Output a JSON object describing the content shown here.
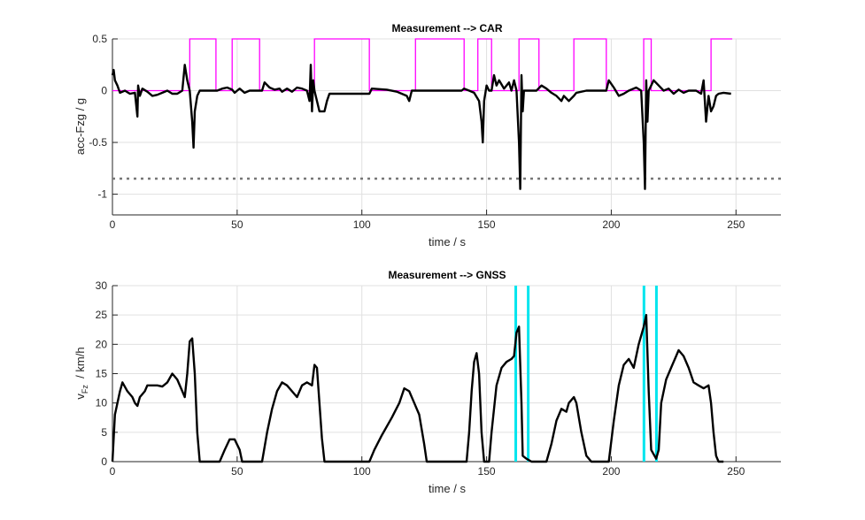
{
  "chart_data": [
    {
      "type": "line",
      "title": "Measurement --> CAR",
      "xlabel": "time / s",
      "ylabel": "acc-Fzg / g",
      "xlim": [
        0,
        268
      ],
      "ylim": [
        -1.2,
        0.5
      ],
      "xticks": [
        0,
        50,
        100,
        150,
        200,
        250
      ],
      "xtick_labels": [
        "0",
        "50",
        "100",
        "150",
        "200",
        "250"
      ],
      "yticks": [
        -1,
        -0.5,
        0,
        0.5
      ],
      "ytick_labels": [
        "-1",
        "-0.5",
        "0",
        "0.5"
      ],
      "grid": true,
      "colors": {
        "trace": "#000000",
        "pulse": "#ff00ff",
        "threshold": "#777777"
      },
      "threshold_y": -0.85,
      "pulse_high": 0.5,
      "pulse_low": 0,
      "pulses": [
        [
          31,
          41.5
        ],
        [
          48,
          59
        ],
        [
          81,
          103
        ],
        [
          121.5,
          141
        ],
        [
          146.5,
          152
        ],
        [
          163,
          171
        ],
        [
          185,
          198
        ],
        [
          213,
          216
        ],
        [
          240,
          248.5
        ]
      ],
      "pulse_end": 248.5,
      "series": [
        {
          "name": "acc",
          "points": [
            [
              0,
              0.15
            ],
            [
              0.5,
              0.2
            ],
            [
              1,
              0.1
            ],
            [
              2,
              0.05
            ],
            [
              3,
              -0.02
            ],
            [
              5,
              0
            ],
            [
              7,
              -0.03
            ],
            [
              9,
              -0.02
            ],
            [
              10,
              -0.25
            ],
            [
              10.3,
              0.05
            ],
            [
              11,
              -0.05
            ],
            [
              12,
              0.02
            ],
            [
              14,
              -0.01
            ],
            [
              16,
              -0.05
            ],
            [
              18,
              -0.04
            ],
            [
              20,
              -0.02
            ],
            [
              22,
              0
            ],
            [
              24,
              -0.03
            ],
            [
              26,
              -0.03
            ],
            [
              28,
              0
            ],
            [
              29,
              0.25
            ],
            [
              30,
              0.1
            ],
            [
              31,
              0
            ],
            [
              32,
              -0.3
            ],
            [
              32.5,
              -0.55
            ],
            [
              33,
              -0.2
            ],
            [
              34,
              -0.05
            ],
            [
              35,
              0
            ],
            [
              42,
              0
            ],
            [
              44,
              0.02
            ],
            [
              46,
              0.03
            ],
            [
              48,
              0.01
            ],
            [
              49,
              -0.02
            ],
            [
              50,
              0
            ],
            [
              51,
              0.02
            ],
            [
              53,
              -0.02
            ],
            [
              55,
              0
            ],
            [
              60,
              0
            ],
            [
              61,
              0.08
            ],
            [
              63,
              0.03
            ],
            [
              65,
              0.01
            ],
            [
              67,
              0.02
            ],
            [
              68,
              -0.01
            ],
            [
              70,
              0.02
            ],
            [
              72,
              -0.01
            ],
            [
              74,
              0.03
            ],
            [
              76,
              0.02
            ],
            [
              78,
              0
            ],
            [
              79,
              -0.1
            ],
            [
              79.5,
              0.25
            ],
            [
              80,
              -0.2
            ],
            [
              80.5,
              0.1
            ],
            [
              81,
              0
            ],
            [
              82,
              -0.1
            ],
            [
              83,
              -0.2
            ],
            [
              85,
              -0.2
            ],
            [
              86,
              -0.1
            ],
            [
              87,
              -0.03
            ],
            [
              103,
              -0.03
            ],
            [
              104,
              0.02
            ],
            [
              110,
              0.01
            ],
            [
              114,
              -0.01
            ],
            [
              116,
              -0.03
            ],
            [
              118,
              -0.05
            ],
            [
              119,
              -0.1
            ],
            [
              120,
              0
            ],
            [
              140,
              0
            ],
            [
              141,
              0.02
            ],
            [
              143,
              0
            ],
            [
              145,
              -0.02
            ],
            [
              147,
              -0.1
            ],
            [
              148,
              -0.3
            ],
            [
              148.5,
              -0.5
            ],
            [
              149,
              -0.1
            ],
            [
              150,
              0.05
            ],
            [
              151,
              0
            ],
            [
              152,
              0
            ],
            [
              153,
              0.15
            ],
            [
              154,
              0.05
            ],
            [
              155,
              0.1
            ],
            [
              157,
              0.02
            ],
            [
              159,
              0.08
            ],
            [
              160,
              0
            ],
            [
              161,
              0.1
            ],
            [
              162,
              0
            ],
            [
              163,
              -0.5
            ],
            [
              163.5,
              -0.95
            ],
            [
              164,
              0.15
            ],
            [
              164.5,
              -0.2
            ],
            [
              165,
              0
            ],
            [
              170,
              0
            ],
            [
              172,
              0.05
            ],
            [
              174,
              0.02
            ],
            [
              176,
              -0.02
            ],
            [
              178,
              -0.05
            ],
            [
              180,
              -0.1
            ],
            [
              181,
              -0.05
            ],
            [
              183,
              -0.1
            ],
            [
              185,
              -0.05
            ],
            [
              186,
              -0.02
            ],
            [
              190,
              0
            ],
            [
              198,
              0
            ],
            [
              199,
              0.1
            ],
            [
              201,
              0.03
            ],
            [
              203,
              -0.05
            ],
            [
              205,
              -0.03
            ],
            [
              207,
              0
            ],
            [
              210,
              0.03
            ],
            [
              212,
              0
            ],
            [
              213,
              -0.5
            ],
            [
              213.5,
              -0.95
            ],
            [
              214,
              0.1
            ],
            [
              214.5,
              -0.3
            ],
            [
              215,
              0
            ],
            [
              217,
              0.1
            ],
            [
              219,
              0.05
            ],
            [
              221,
              0
            ],
            [
              223,
              0.02
            ],
            [
              225,
              -0.03
            ],
            [
              227,
              0.01
            ],
            [
              229,
              -0.02
            ],
            [
              231,
              0
            ],
            [
              234,
              0
            ],
            [
              236,
              -0.03
            ],
            [
              237,
              0.1
            ],
            [
              238,
              -0.3
            ],
            [
              239,
              -0.05
            ],
            [
              240,
              -0.2
            ],
            [
              241,
              -0.15
            ],
            [
              242,
              -0.05
            ],
            [
              243,
              -0.03
            ],
            [
              245,
              -0.02
            ],
            [
              248,
              -0.03
            ]
          ]
        }
      ]
    },
    {
      "type": "line",
      "title": "Measurement --> GNSS",
      "xlabel": "time / s",
      "ylabel_main": "v",
      "ylabel_sub": "Fz",
      "ylabel_rest": "  / km/h",
      "xlim": [
        0,
        268
      ],
      "ylim": [
        0,
        30
      ],
      "xticks": [
        0,
        50,
        100,
        150,
        200,
        250
      ],
      "xtick_labels": [
        "0",
        "50",
        "100",
        "150",
        "200",
        "250"
      ],
      "yticks": [
        0,
        5,
        10,
        15,
        20,
        25,
        30
      ],
      "ytick_labels": [
        "0",
        "5",
        "10",
        "15",
        "20",
        "25",
        "30"
      ],
      "grid": true,
      "colors": {
        "trace": "#000000",
        "marker": "#00e5ee"
      },
      "vertical_markers": [
        161.7,
        166.7,
        213.1,
        218.1
      ],
      "series": [
        {
          "name": "speed",
          "points": [
            [
              0,
              0
            ],
            [
              1,
              8
            ],
            [
              3,
              12
            ],
            [
              4,
              13.5
            ],
            [
              6,
              12
            ],
            [
              8,
              11
            ],
            [
              9,
              10
            ],
            [
              10,
              9.5
            ],
            [
              11,
              11
            ],
            [
              13,
              12
            ],
            [
              14,
              13
            ],
            [
              16,
              13
            ],
            [
              18,
              13
            ],
            [
              20,
              12.8
            ],
            [
              22,
              13.5
            ],
            [
              24,
              15
            ],
            [
              26,
              14
            ],
            [
              28,
              12
            ],
            [
              29,
              11
            ],
            [
              30,
              15
            ],
            [
              31,
              20.5
            ],
            [
              32,
              21
            ],
            [
              33,
              15
            ],
            [
              34,
              5
            ],
            [
              35,
              0
            ],
            [
              43,
              0
            ],
            [
              45,
              2
            ],
            [
              47,
              3.8
            ],
            [
              49,
              3.8
            ],
            [
              51,
              2
            ],
            [
              52,
              0
            ],
            [
              60,
              0
            ],
            [
              62,
              5
            ],
            [
              64,
              9
            ],
            [
              66,
              12
            ],
            [
              68,
              13.5
            ],
            [
              70,
              13
            ],
            [
              72,
              12
            ],
            [
              74,
              11
            ],
            [
              76,
              13
            ],
            [
              78,
              13.5
            ],
            [
              80,
              13
            ],
            [
              81,
              16.5
            ],
            [
              82,
              16
            ],
            [
              83,
              10
            ],
            [
              84,
              4
            ],
            [
              85,
              0
            ],
            [
              103,
              0
            ],
            [
              105,
              2
            ],
            [
              108,
              4.5
            ],
            [
              112,
              7.5
            ],
            [
              115,
              10
            ],
            [
              117,
              12.5
            ],
            [
              119,
              12
            ],
            [
              121,
              10
            ],
            [
              123,
              8
            ],
            [
              125,
              3
            ],
            [
              126,
              0
            ],
            [
              142,
              0
            ],
            [
              143,
              5
            ],
            [
              144,
              12
            ],
            [
              145,
              17
            ],
            [
              146,
              18.5
            ],
            [
              147,
              15
            ],
            [
              148,
              5
            ],
            [
              149,
              0
            ],
            [
              151,
              0
            ],
            [
              152,
              5
            ],
            [
              154,
              13
            ],
            [
              156,
              16
            ],
            [
              158,
              17
            ],
            [
              160,
              17.5
            ],
            [
              161,
              18
            ],
            [
              162,
              22
            ],
            [
              163,
              23
            ],
            [
              164,
              10
            ],
            [
              164.5,
              1
            ],
            [
              166,
              0.5
            ],
            [
              168,
              0
            ],
            [
              174,
              0
            ],
            [
              176,
              3
            ],
            [
              178,
              7
            ],
            [
              180,
              9
            ],
            [
              182,
              8.5
            ],
            [
              183,
              10
            ],
            [
              185,
              11
            ],
            [
              186,
              10
            ],
            [
              188,
              5
            ],
            [
              190,
              1
            ],
            [
              192,
              0
            ],
            [
              199,
              0
            ],
            [
              201,
              7
            ],
            [
              203,
              13
            ],
            [
              205,
              16.5
            ],
            [
              207,
              17.5
            ],
            [
              209,
              16
            ],
            [
              211,
              20
            ],
            [
              213,
              23
            ],
            [
              214,
              25
            ],
            [
              215,
              12
            ],
            [
              216,
              2
            ],
            [
              218,
              0.5
            ],
            [
              219,
              2
            ],
            [
              220,
              10
            ],
            [
              222,
              14
            ],
            [
              224,
              16
            ],
            [
              226,
              18
            ],
            [
              227,
              19
            ],
            [
              229,
              18
            ],
            [
              231,
              16
            ],
            [
              233,
              13.5
            ],
            [
              235,
              13
            ],
            [
              237,
              12.5
            ],
            [
              239,
              13
            ],
            [
              240,
              10
            ],
            [
              241,
              5
            ],
            [
              242,
              1
            ],
            [
              243,
              0
            ],
            [
              245,
              0
            ]
          ]
        }
      ]
    }
  ]
}
